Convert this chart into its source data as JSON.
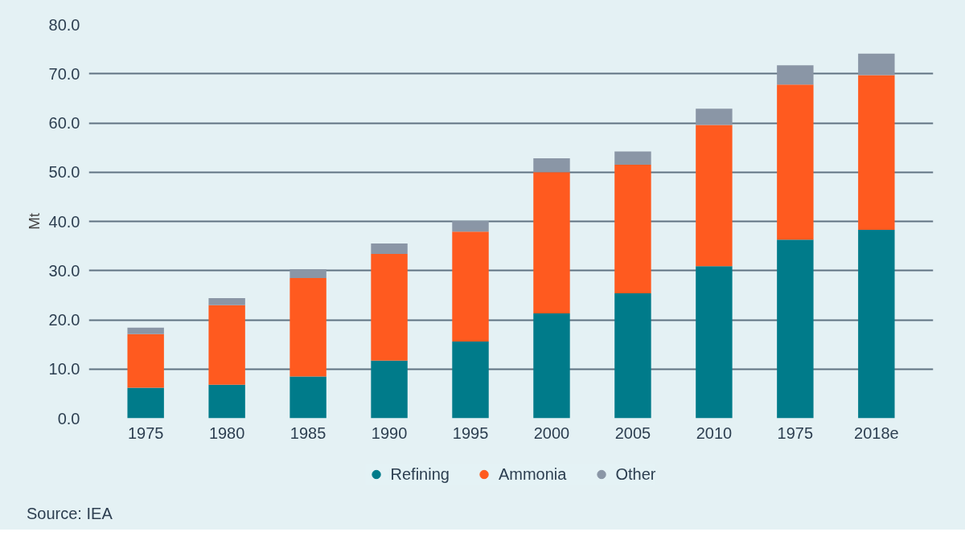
{
  "chart_data": {
    "type": "bar",
    "stacked": true,
    "ylabel": "Mt",
    "categories": [
      "1975",
      "1980",
      "1985",
      "1990",
      "1995",
      "2000",
      "2005",
      "2010",
      "1975",
      "2018e"
    ],
    "series": [
      {
        "name": "Refining",
        "color": "#007b8a",
        "values": [
          6.2,
          6.8,
          8.5,
          11.7,
          15.6,
          21.3,
          25.4,
          30.9,
          36.3,
          38.3
        ]
      },
      {
        "name": "Ammonia",
        "color": "#ff5a1f",
        "values": [
          10.9,
          16.2,
          20.0,
          21.7,
          22.3,
          28.7,
          26.1,
          28.7,
          31.5,
          31.4
        ]
      },
      {
        "name": "Other",
        "color": "#8a96a6",
        "values": [
          1.3,
          1.4,
          1.8,
          2.1,
          2.2,
          2.8,
          2.7,
          3.3,
          3.9,
          4.4
        ]
      }
    ],
    "ylim": [
      0,
      80
    ],
    "yticks": [
      {
        "value": 0,
        "label": "0.0"
      },
      {
        "value": 10,
        "label": "10.0"
      },
      {
        "value": 20,
        "label": "20.0"
      },
      {
        "value": 30,
        "label": "30.0"
      },
      {
        "value": 40,
        "label": "40.0"
      },
      {
        "value": 50,
        "label": "50.0"
      },
      {
        "value": 60,
        "label": "60.0"
      },
      {
        "value": 70,
        "label": "70.0"
      },
      {
        "value": 80,
        "label": "80.0"
      }
    ],
    "grid": "y",
    "legend": "bottom",
    "annotations": [
      "Source: IEA"
    ]
  }
}
